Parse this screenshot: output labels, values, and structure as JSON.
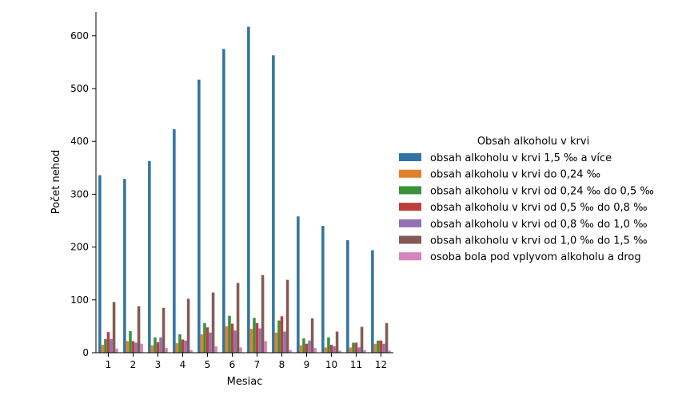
{
  "chart_data": {
    "type": "bar",
    "xlabel": "Mesiac",
    "ylabel": "Počet nehod",
    "ylim": [
      0,
      650
    ],
    "yticks": [
      0,
      100,
      200,
      300,
      400,
      500,
      600
    ],
    "grid": false,
    "legend_position": "right",
    "legend_title": "Obsah alkoholu v krvi",
    "categories": [
      "1",
      "2",
      "3",
      "4",
      "5",
      "6",
      "7",
      "8",
      "9",
      "10",
      "11",
      "12"
    ],
    "series": [
      {
        "name": "obsah alkoholu v krvi 1,5 ‰ a více",
        "color": "#3274a1",
        "values": [
          336,
          329,
          363,
          423,
          517,
          575,
          617,
          563,
          258,
          240,
          213,
          194
        ]
      },
      {
        "name": "obsah alkoholu v krvi do 0,24 ‰",
        "color": "#e1812c",
        "values": [
          15,
          22,
          14,
          18,
          35,
          50,
          45,
          38,
          14,
          10,
          10,
          17
        ]
      },
      {
        "name": "obsah alkoholu v krvi od 0,24 ‰ do 0,5 ‰",
        "color": "#3a923a",
        "values": [
          26,
          41,
          29,
          35,
          56,
          70,
          66,
          61,
          27,
          29,
          19,
          23
        ]
      },
      {
        "name": "obsah alkoholu v krvi od 0,5 ‰ do 0,8 ‰",
        "color": "#c03d3e",
        "values": [
          39,
          22,
          20,
          25,
          48,
          55,
          56,
          69,
          17,
          15,
          19,
          23
        ]
      },
      {
        "name": "obsah alkoholu v krvi od 0,8 ‰ do 1,0 ‰",
        "color": "#9372b2",
        "values": [
          26,
          19,
          29,
          23,
          38,
          42,
          46,
          40,
          23,
          12,
          10,
          17
        ]
      },
      {
        "name": "obsah alkoholu v krvi od 1,0 ‰ do 1,5 ‰",
        "color": "#845b53",
        "values": [
          96,
          88,
          85,
          102,
          114,
          132,
          147,
          138,
          65,
          40,
          49,
          56
        ]
      },
      {
        "name": "osoba bola pod vplyvom alkoholu a drog",
        "color": "#d684bd",
        "values": [
          8,
          17,
          9,
          5,
          12,
          10,
          22,
          5,
          9,
          4,
          5,
          4
        ]
      }
    ]
  }
}
